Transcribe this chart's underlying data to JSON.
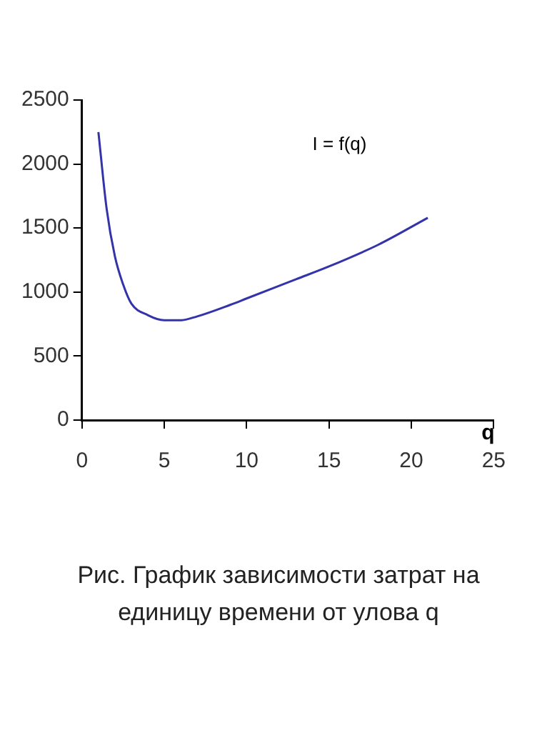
{
  "chart_data": {
    "type": "line",
    "xlabel": "q",
    "annotations": [
      "I = f(q)",
      "Рис.   График зависимости затрат на единицу времени от улова q"
    ],
    "series": [
      {
        "color": "#3333aa",
        "x": [
          1,
          1.5,
          2,
          2.5,
          3,
          4,
          5,
          6,
          7,
          9,
          10,
          13,
          15,
          18,
          21
        ],
        "values": [
          2250,
          1650,
          1280,
          1060,
          910,
          820,
          780,
          780,
          810,
          900,
          950,
          1100,
          1200,
          1370,
          1580
        ]
      }
    ],
    "xlim": [
      0,
      25
    ],
    "xticks": [
      0,
      5,
      10,
      15,
      20,
      25
    ],
    "ylim": [
      0,
      2500
    ],
    "yticks": [
      0,
      500,
      1000,
      1500,
      2000,
      2500
    ],
    "grid": false,
    "legend": false,
    "marker": "none",
    "line_style": "solid"
  }
}
